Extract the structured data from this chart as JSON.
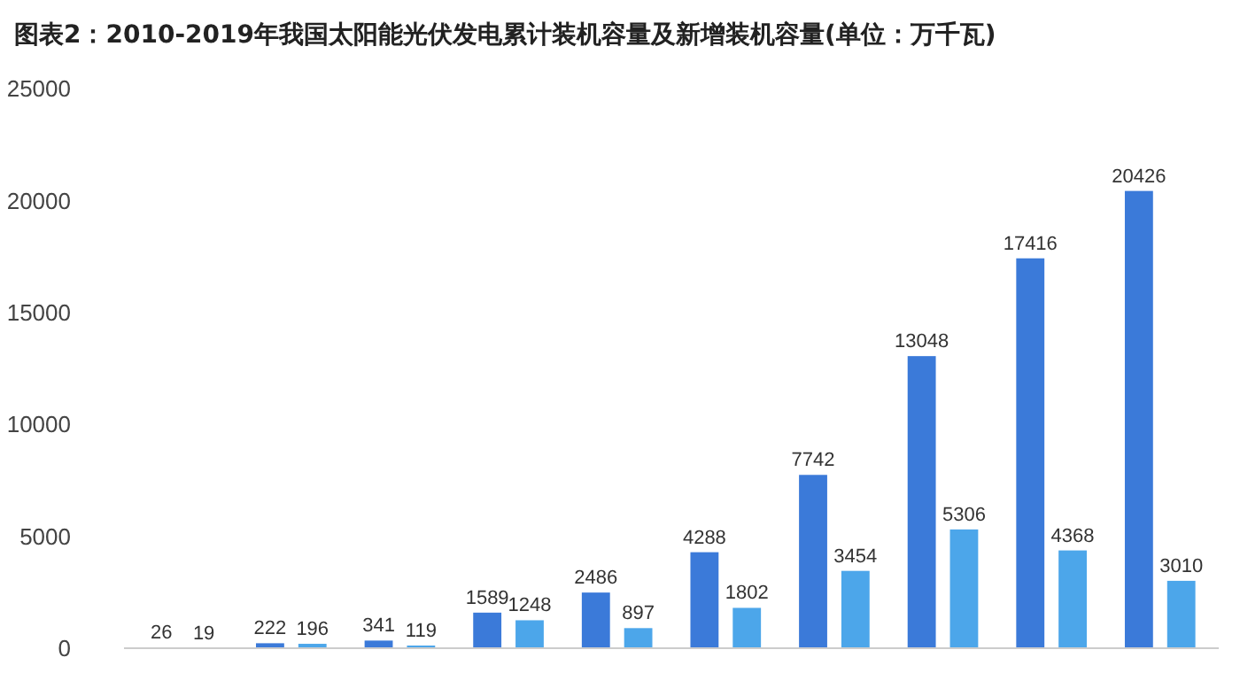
{
  "chart_data": {
    "type": "bar",
    "title": "图表2：2010-2019年我国太阳能光伏发电累计装机容量及新增装机容量(单位：万千瓦)",
    "categories": [
      null,
      null,
      null,
      null,
      null,
      null,
      null,
      null,
      null,
      null
    ],
    "series": [
      {
        "color": "#3b7ad9",
        "values": [
          26,
          222,
          341,
          1589,
          2486,
          4288,
          7742,
          13048,
          17416,
          20426
        ]
      },
      {
        "color": "#4ca6ea",
        "values": [
          19,
          196,
          119,
          1248,
          897,
          1802,
          3454,
          5306,
          4368,
          3010
        ]
      }
    ],
    "ylim": [
      0,
      25000
    ],
    "yticks": [
      0,
      5000,
      10000,
      15000,
      20000,
      25000
    ],
    "data_labels": true,
    "grid": false
  }
}
